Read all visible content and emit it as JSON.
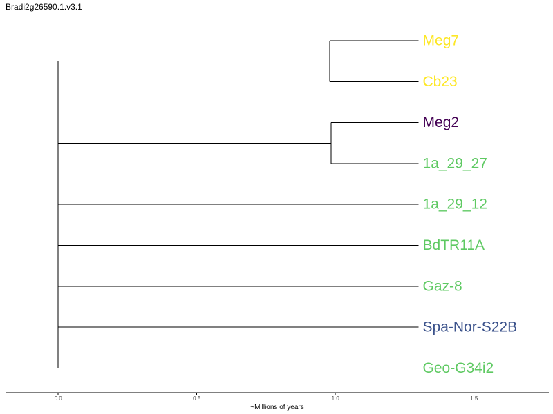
{
  "title": "Bradi2g26590.1.v3.1",
  "chart_data": {
    "type": "dendrogram",
    "xlabel": "~Millions of years",
    "xlim": [
      -0.19,
      1.77
    ],
    "xticks": [
      {
        "value": 0.0,
        "label": "0.0"
      },
      {
        "value": 0.5,
        "label": "0.5"
      },
      {
        "value": 1.0,
        "label": "1.0"
      },
      {
        "value": 1.5,
        "label": "1.5"
      }
    ],
    "leaves": [
      {
        "id": "meg7",
        "label": "Meg7",
        "color": "#fde725"
      },
      {
        "id": "cb23",
        "label": "Cb23",
        "color": "#fde725"
      },
      {
        "id": "meg2",
        "label": "Meg2",
        "color": "#440154"
      },
      {
        "id": "1a_29_27",
        "label": "1a_29_27",
        "color": "#5ec962"
      },
      {
        "id": "1a_29_12",
        "label": "1a_29_12",
        "color": "#5ec962"
      },
      {
        "id": "bdtr11a",
        "label": "BdTR11A",
        "color": "#5ec962"
      },
      {
        "id": "gaz8",
        "label": "Gaz-8",
        "color": "#5ec962"
      },
      {
        "id": "spa-nor-s22b",
        "label": "Spa-Nor-S22B",
        "color": "#3b528b"
      },
      {
        "id": "geo-g34i2",
        "label": "Geo-G34i2",
        "color": "#5ec962"
      }
    ],
    "leaf_x": 1.3,
    "clusters": [
      {
        "x": 0.98,
        "children": [
          "meg7",
          "cb23"
        ]
      },
      {
        "x": 0.985,
        "children": [
          "meg2",
          "1a_29_27"
        ]
      },
      {
        "x": 0.0,
        "children": [
          "meg7,cb23",
          "meg2,1a_29_27",
          "1a_29_12",
          "bdtr11a",
          "gaz8",
          "spa-nor-s22b",
          "geo-g34i2"
        ]
      }
    ]
  }
}
